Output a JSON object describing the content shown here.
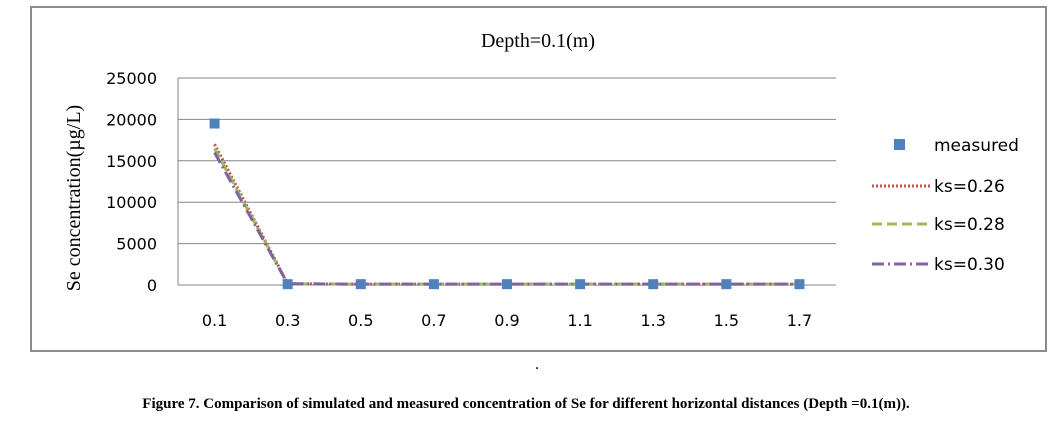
{
  "chart_data": {
    "type": "line",
    "title": "Depth=0.1(m)",
    "xlabel": "",
    "ylabel": "Se concentration(µg/L)",
    "categories": [
      "0.1",
      "0.3",
      "0.5",
      "0.7",
      "0.9",
      "1.1",
      "1.3",
      "1.5",
      "1.7"
    ],
    "ylim": [
      0,
      25000
    ],
    "yticks": [
      0,
      5000,
      10000,
      15000,
      20000,
      25000
    ],
    "grid": true,
    "legend_position": "right",
    "series": [
      {
        "name": "measured",
        "style": "marker",
        "color": "#4f81bd",
        "values": [
          19500,
          100,
          100,
          100,
          100,
          100,
          100,
          100,
          100
        ]
      },
      {
        "name": "ks=0.26",
        "style": "dotted",
        "color": "#c0504d",
        "values": [
          17000,
          150,
          100,
          100,
          100,
          100,
          100,
          100,
          100
        ]
      },
      {
        "name": "ks=0.28",
        "style": "dashed",
        "color": "#9bbb59",
        "values": [
          16500,
          150,
          100,
          100,
          100,
          100,
          100,
          100,
          100
        ]
      },
      {
        "name": "ks=0.30",
        "style": "dashdot",
        "color": "#8064a2",
        "values": [
          16000,
          150,
          100,
          100,
          100,
          100,
          100,
          100,
          100
        ]
      }
    ]
  },
  "caption": "Figure 7. Comparison of simulated and measured concentration of Se for different horizontal distances (Depth =0.1(m)).",
  "footer_mark": "."
}
